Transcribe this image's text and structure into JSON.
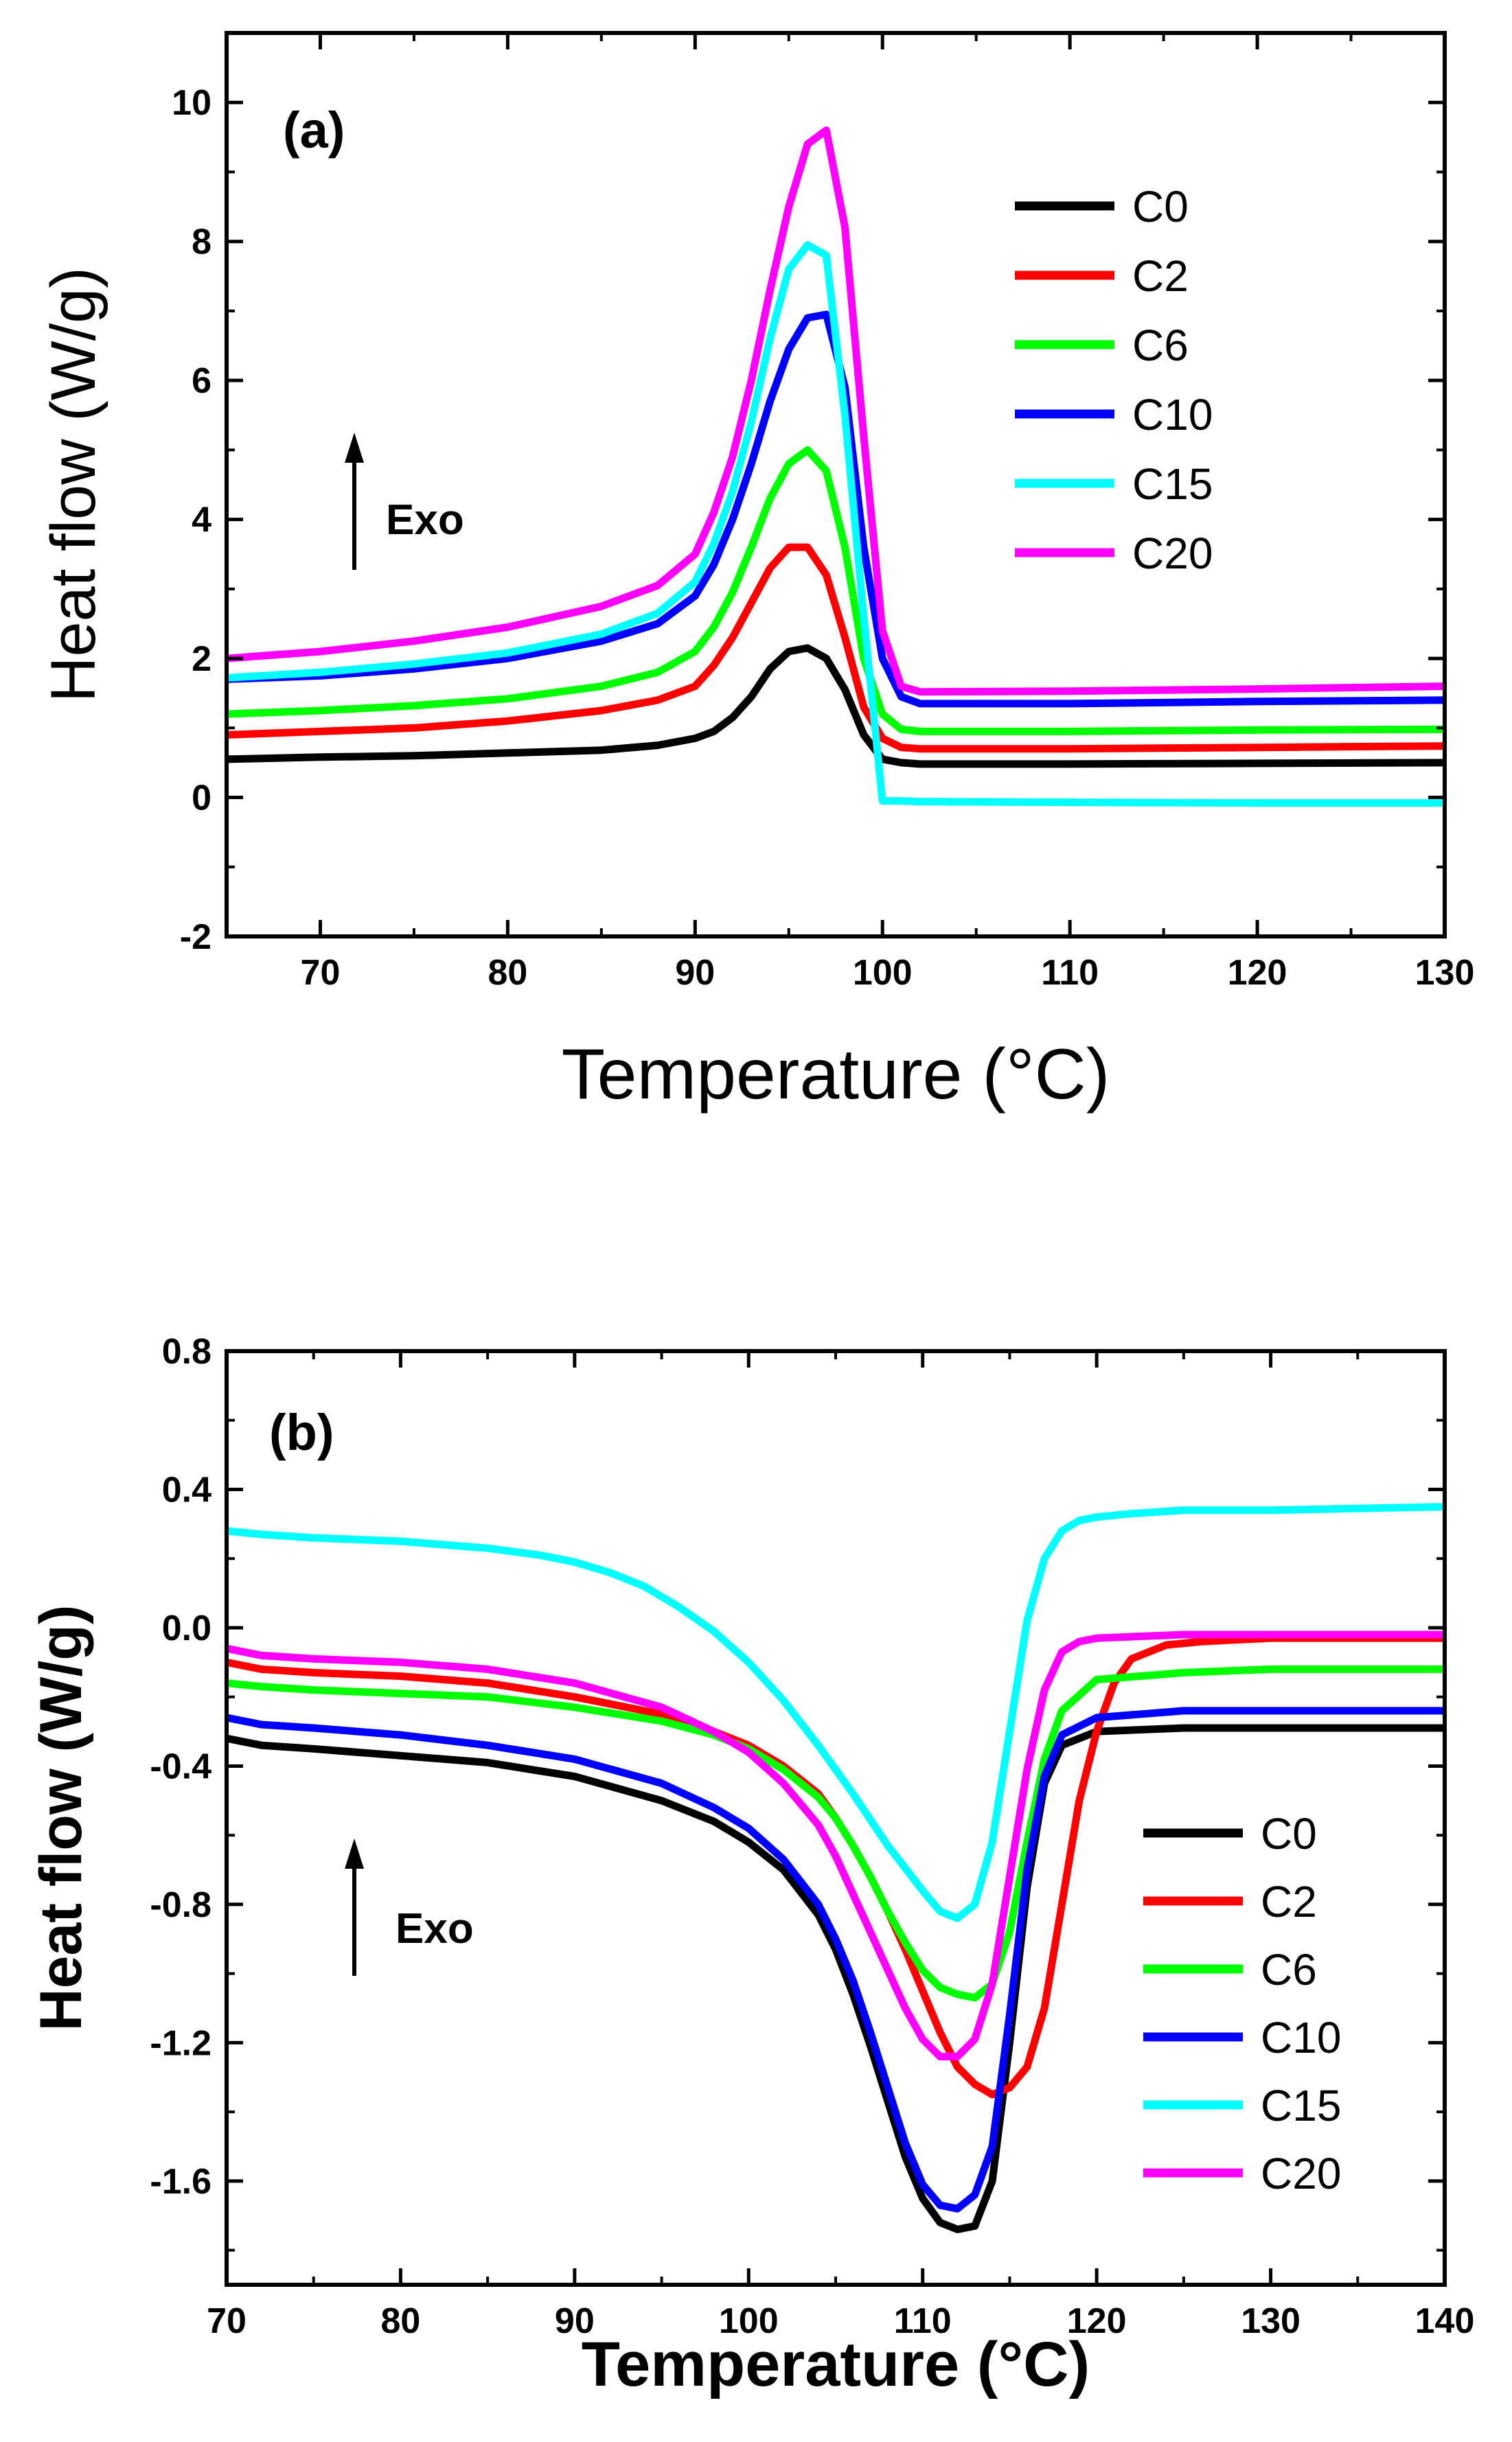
{
  "chart_data": [
    {
      "type": "line",
      "panel_label": "(a)",
      "annotation": "Exo",
      "xlabel": "Temperature (°C)",
      "ylabel": "Heat flow (W/g)",
      "xlim": [
        65,
        130
      ],
      "ylim": [
        -2,
        11
      ],
      "xticks": [
        70,
        80,
        90,
        100,
        110,
        120,
        130
      ],
      "yticks": [
        -2,
        0,
        2,
        4,
        6,
        8,
        10
      ],
      "xtick_labels": [
        "70",
        "80",
        "90",
        "100",
        "110",
        "120",
        "130"
      ],
      "ytick_labels": [
        "-2",
        "0",
        "2",
        "4",
        "6",
        "8",
        "10"
      ],
      "legend": "top-right",
      "series": [
        {
          "name": "C0",
          "color": "#000000",
          "x": [
            65,
            70,
            75,
            80,
            85,
            88,
            90,
            91,
            92,
            93,
            94,
            95,
            96,
            97,
            98,
            99,
            100,
            101,
            102,
            110,
            120,
            130
          ],
          "y": [
            0.55,
            0.58,
            0.6,
            0.64,
            0.68,
            0.75,
            0.85,
            0.95,
            1.15,
            1.45,
            1.85,
            2.1,
            2.15,
            2.0,
            1.55,
            0.9,
            0.55,
            0.5,
            0.48,
            0.48,
            0.49,
            0.5
          ]
        },
        {
          "name": "C2",
          "color": "#ff0000",
          "x": [
            65,
            70,
            75,
            80,
            85,
            88,
            90,
            91,
            92,
            93,
            94,
            95,
            96,
            97,
            98,
            99,
            100,
            101,
            102,
            110,
            120,
            130
          ],
          "y": [
            0.9,
            0.95,
            1.0,
            1.1,
            1.25,
            1.4,
            1.6,
            1.9,
            2.3,
            2.8,
            3.3,
            3.6,
            3.6,
            3.2,
            2.3,
            1.3,
            0.85,
            0.72,
            0.7,
            0.7,
            0.72,
            0.74
          ]
        },
        {
          "name": "C6",
          "color": "#00ff00",
          "x": [
            65,
            70,
            75,
            80,
            85,
            88,
            90,
            91,
            92,
            93,
            94,
            95,
            96,
            97,
            98,
            99,
            100,
            101,
            102,
            110,
            120,
            130
          ],
          "y": [
            1.2,
            1.25,
            1.32,
            1.42,
            1.6,
            1.8,
            2.1,
            2.45,
            2.95,
            3.6,
            4.3,
            4.8,
            5.0,
            4.7,
            3.6,
            2.0,
            1.2,
            0.98,
            0.95,
            0.95,
            0.97,
            0.98
          ]
        },
        {
          "name": "C10",
          "color": "#0000ff",
          "x": [
            65,
            70,
            75,
            80,
            85,
            88,
            90,
            91,
            92,
            93,
            94,
            95,
            96,
            97,
            98,
            99,
            100,
            101,
            102,
            110,
            120,
            130
          ],
          "y": [
            1.7,
            1.75,
            1.85,
            2.0,
            2.25,
            2.5,
            2.9,
            3.35,
            4.0,
            4.8,
            5.7,
            6.45,
            6.9,
            6.95,
            5.9,
            3.6,
            2.0,
            1.45,
            1.35,
            1.35,
            1.38,
            1.4
          ]
        },
        {
          "name": "C15",
          "color": "#00ffff",
          "x": [
            65,
            70,
            75,
            80,
            85,
            88,
            90,
            91,
            92,
            93,
            94,
            95,
            96,
            97,
            98,
            99,
            100,
            101,
            102,
            110,
            120,
            130
          ],
          "y": [
            1.72,
            1.8,
            1.92,
            2.08,
            2.35,
            2.65,
            3.1,
            3.65,
            4.4,
            5.4,
            6.6,
            7.6,
            7.95,
            7.8,
            5.5,
            2.6,
            -0.05,
            -0.05,
            -0.06,
            -0.07,
            -0.08,
            -0.08
          ]
        },
        {
          "name": "C20",
          "color": "#ff00ff",
          "x": [
            65,
            70,
            75,
            80,
            85,
            88,
            90,
            91,
            92,
            93,
            94,
            95,
            96,
            97,
            98,
            99,
            100,
            101,
            102,
            110,
            120,
            130
          ],
          "y": [
            2.0,
            2.1,
            2.25,
            2.45,
            2.75,
            3.05,
            3.5,
            4.1,
            4.9,
            6.0,
            7.3,
            8.5,
            9.4,
            9.6,
            8.2,
            5.2,
            2.4,
            1.6,
            1.52,
            1.53,
            1.56,
            1.6
          ]
        }
      ]
    },
    {
      "type": "line",
      "panel_label": "(b)",
      "annotation": "Exo",
      "xlabel": "Temperature (°C)",
      "ylabel": "Heat flow (W/g)",
      "xlim": [
        70,
        140
      ],
      "ylim": [
        -1.9,
        0.8
      ],
      "xticks": [
        70,
        80,
        90,
        100,
        110,
        120,
        130,
        140
      ],
      "yticks": [
        -1.6,
        -1.2,
        -0.8,
        -0.4,
        0.0,
        0.4,
        0.8
      ],
      "xtick_labels": [
        "70",
        "80",
        "90",
        "100",
        "110",
        "120",
        "130",
        "140"
      ],
      "ytick_labels": [
        "-1.6",
        "-1.2",
        "-0.8",
        "-0.4",
        "0.0",
        "0.4",
        "0.8"
      ],
      "legend": "bottom-right",
      "series": [
        {
          "name": "C0",
          "color": "#000000",
          "x": [
            70,
            72,
            75,
            80,
            85,
            90,
            95,
            98,
            100,
            102,
            104,
            105,
            106,
            107,
            108,
            109,
            110,
            111,
            112,
            113,
            114,
            115,
            116,
            117,
            118,
            120,
            125,
            130,
            140
          ],
          "y": [
            -0.32,
            -0.34,
            -0.35,
            -0.37,
            -0.39,
            -0.43,
            -0.5,
            -0.56,
            -0.62,
            -0.7,
            -0.83,
            -0.93,
            -1.06,
            -1.21,
            -1.37,
            -1.53,
            -1.65,
            -1.72,
            -1.74,
            -1.73,
            -1.6,
            -1.2,
            -0.75,
            -0.45,
            -0.34,
            -0.3,
            -0.29,
            -0.29,
            -0.29
          ]
        },
        {
          "name": "C2",
          "color": "#ff0000",
          "x": [
            70,
            72,
            75,
            80,
            85,
            90,
            95,
            98,
            100,
            102,
            104,
            105,
            106,
            107,
            108,
            109,
            110,
            111,
            112,
            113,
            114,
            115,
            116,
            117,
            118,
            119,
            120,
            121,
            122,
            124,
            126,
            130,
            140
          ],
          "y": [
            -0.1,
            -0.12,
            -0.13,
            -0.14,
            -0.16,
            -0.2,
            -0.25,
            -0.3,
            -0.34,
            -0.4,
            -0.48,
            -0.55,
            -0.63,
            -0.72,
            -0.82,
            -0.93,
            -1.05,
            -1.17,
            -1.27,
            -1.32,
            -1.35,
            -1.33,
            -1.27,
            -1.1,
            -0.8,
            -0.5,
            -0.3,
            -0.16,
            -0.09,
            -0.05,
            -0.04,
            -0.03,
            -0.03
          ]
        },
        {
          "name": "C6",
          "color": "#00ff00",
          "x": [
            70,
            72,
            75,
            80,
            85,
            90,
            95,
            98,
            100,
            102,
            104,
            105,
            106,
            107,
            108,
            109,
            110,
            111,
            112,
            113,
            114,
            115,
            116,
            117,
            118,
            120,
            125,
            130,
            140
          ],
          "y": [
            -0.16,
            -0.17,
            -0.18,
            -0.19,
            -0.2,
            -0.23,
            -0.27,
            -0.31,
            -0.35,
            -0.41,
            -0.49,
            -0.55,
            -0.63,
            -0.72,
            -0.82,
            -0.91,
            -0.99,
            -1.04,
            -1.06,
            -1.07,
            -1.03,
            -0.88,
            -0.62,
            -0.38,
            -0.24,
            -0.15,
            -0.13,
            -0.12,
            -0.12
          ]
        },
        {
          "name": "C10",
          "color": "#0000ff",
          "x": [
            70,
            72,
            75,
            80,
            85,
            90,
            95,
            98,
            100,
            102,
            104,
            105,
            106,
            107,
            108,
            109,
            110,
            111,
            112,
            113,
            114,
            115,
            116,
            117,
            118,
            120,
            125,
            130,
            140
          ],
          "y": [
            -0.26,
            -0.28,
            -0.29,
            -0.31,
            -0.34,
            -0.38,
            -0.45,
            -0.52,
            -0.58,
            -0.67,
            -0.8,
            -0.9,
            -1.02,
            -1.17,
            -1.33,
            -1.49,
            -1.61,
            -1.67,
            -1.68,
            -1.64,
            -1.5,
            -1.12,
            -0.7,
            -0.43,
            -0.31,
            -0.26,
            -0.24,
            -0.24,
            -0.24
          ]
        },
        {
          "name": "C15",
          "color": "#00ffff",
          "x": [
            70,
            72,
            75,
            80,
            85,
            88,
            90,
            92,
            94,
            96,
            98,
            100,
            102,
            104,
            106,
            108,
            110,
            111,
            112,
            113,
            114,
            115,
            116,
            117,
            118,
            119,
            120,
            122,
            125,
            130,
            140
          ],
          "y": [
            0.28,
            0.27,
            0.26,
            0.25,
            0.23,
            0.21,
            0.19,
            0.16,
            0.12,
            0.06,
            -0.01,
            -0.1,
            -0.21,
            -0.34,
            -0.48,
            -0.63,
            -0.76,
            -0.82,
            -0.84,
            -0.8,
            -0.62,
            -0.3,
            0.02,
            0.2,
            0.28,
            0.31,
            0.32,
            0.33,
            0.34,
            0.34,
            0.35
          ]
        },
        {
          "name": "C20",
          "color": "#ff00ff",
          "x": [
            70,
            72,
            75,
            80,
            85,
            90,
            95,
            98,
            100,
            102,
            104,
            105,
            106,
            107,
            108,
            109,
            110,
            111,
            112,
            113,
            114,
            115,
            116,
            117,
            118,
            119,
            120,
            125,
            130,
            140
          ],
          "y": [
            -0.06,
            -0.08,
            -0.09,
            -0.1,
            -0.12,
            -0.16,
            -0.23,
            -0.3,
            -0.36,
            -0.45,
            -0.57,
            -0.66,
            -0.77,
            -0.88,
            -0.99,
            -1.1,
            -1.19,
            -1.24,
            -1.24,
            -1.19,
            -1.03,
            -0.72,
            -0.41,
            -0.18,
            -0.07,
            -0.04,
            -0.03,
            -0.02,
            -0.02,
            -0.02
          ]
        }
      ]
    }
  ]
}
